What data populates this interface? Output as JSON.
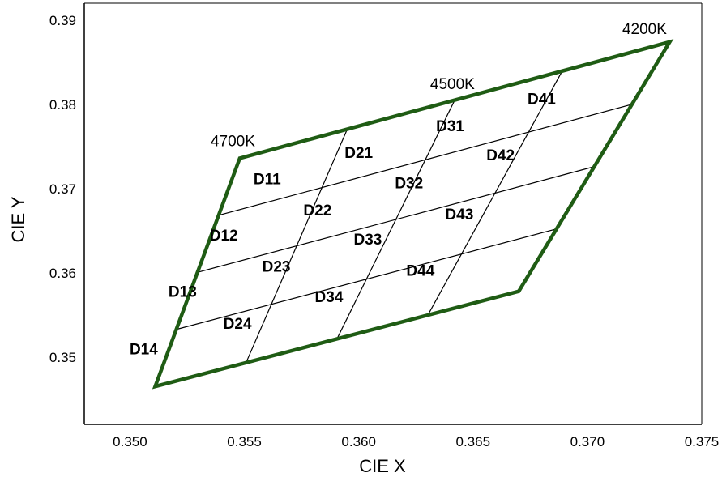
{
  "chart_data": {
    "type": "diagram",
    "xlabel": "CIE X",
    "ylabel": "CIE Y",
    "xlim": [
      0.348,
      0.375
    ],
    "ylim": [
      0.342,
      0.392
    ],
    "x_ticks": [
      {
        "value": 0.35,
        "label": "0.350"
      },
      {
        "value": 0.355,
        "label": "0.355"
      },
      {
        "value": 0.36,
        "label": "0.360"
      },
      {
        "value": 0.365,
        "label": "0.365"
      },
      {
        "value": 0.37,
        "label": "0.370"
      },
      {
        "value": 0.375,
        "label": "0.375"
      }
    ],
    "y_ticks": [
      {
        "value": 0.35,
        "label": "0.35"
      },
      {
        "value": 0.36,
        "label": "0.36"
      },
      {
        "value": 0.37,
        "label": "0.37"
      },
      {
        "value": 0.38,
        "label": "0.38"
      },
      {
        "value": 0.39,
        "label": "0.39"
      }
    ],
    "outline_color": "#1f5c14",
    "grid_line_color": "#000000",
    "quadrangle": {
      "top_left": [
        0.3548,
        0.3736
      ],
      "top_right": [
        0.3736,
        0.3874
      ],
      "bottom_right": [
        0.367,
        0.3578
      ],
      "bottom_left": [
        0.3511,
        0.3465
      ]
    },
    "divisions": 4,
    "cells": [
      {
        "label": "D11",
        "x": 0.356,
        "y": 0.3712
      },
      {
        "label": "D12",
        "x": 0.3541,
        "y": 0.3645
      },
      {
        "label": "D13",
        "x": 0.3523,
        "y": 0.3578
      },
      {
        "label": "D14",
        "x": 0.3506,
        "y": 0.351
      },
      {
        "label": "D21",
        "x": 0.36,
        "y": 0.3743
      },
      {
        "label": "D22",
        "x": 0.3582,
        "y": 0.3675
      },
      {
        "label": "D23",
        "x": 0.3564,
        "y": 0.3608
      },
      {
        "label": "D24",
        "x": 0.3547,
        "y": 0.354
      },
      {
        "label": "D31",
        "x": 0.364,
        "y": 0.3775
      },
      {
        "label": "D32",
        "x": 0.3622,
        "y": 0.3707
      },
      {
        "label": "D33",
        "x": 0.3604,
        "y": 0.364
      },
      {
        "label": "D34",
        "x": 0.3587,
        "y": 0.3572
      },
      {
        "label": "D41",
        "x": 0.368,
        "y": 0.3807
      },
      {
        "label": "D42",
        "x": 0.3662,
        "y": 0.374
      },
      {
        "label": "D43",
        "x": 0.3644,
        "y": 0.367
      },
      {
        "label": "D44",
        "x": 0.3627,
        "y": 0.3603
      }
    ],
    "cct_labels": [
      {
        "label": "4700K",
        "x": 0.3545,
        "y": 0.3757
      },
      {
        "label": "4500K",
        "x": 0.3641,
        "y": 0.3825
      },
      {
        "label": "4200K",
        "x": 0.3725,
        "y": 0.389
      }
    ]
  }
}
